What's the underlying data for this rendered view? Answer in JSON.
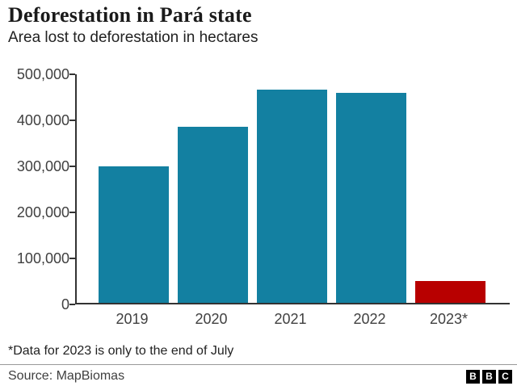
{
  "header": {
    "title": "Deforestation in Pará state",
    "subtitle": "Area lost to deforestation in hectares"
  },
  "chart_data": {
    "type": "bar",
    "title": "Deforestation in Pará state",
    "subtitle": "Area lost to deforestation in hectares",
    "categories": [
      "2019",
      "2020",
      "2021",
      "2022",
      "2023*"
    ],
    "values": [
      296000,
      383000,
      463000,
      457000,
      47000
    ],
    "bar_colors": [
      "#1380A1",
      "#1380A1",
      "#1380A1",
      "#1380A1",
      "#B80000"
    ],
    "xlabel": "",
    "ylabel": "",
    "ylim": [
      0,
      500000
    ],
    "ytick_values": [
      0,
      100000,
      200000,
      300000,
      400000,
      500000
    ],
    "ytick_labels": [
      "0",
      "100,000",
      "200,000",
      "300,000",
      "400,000",
      "500,000"
    ],
    "grid": false,
    "legend": false,
    "axis_color": "#333333",
    "teal_color": "#1380A1",
    "red_color": "#B80000"
  },
  "footnote": "*Data for 2023 is only to the end of July",
  "footer": {
    "source": "Source: MapBiomas",
    "logo_letters": [
      "B",
      "B",
      "C"
    ]
  }
}
